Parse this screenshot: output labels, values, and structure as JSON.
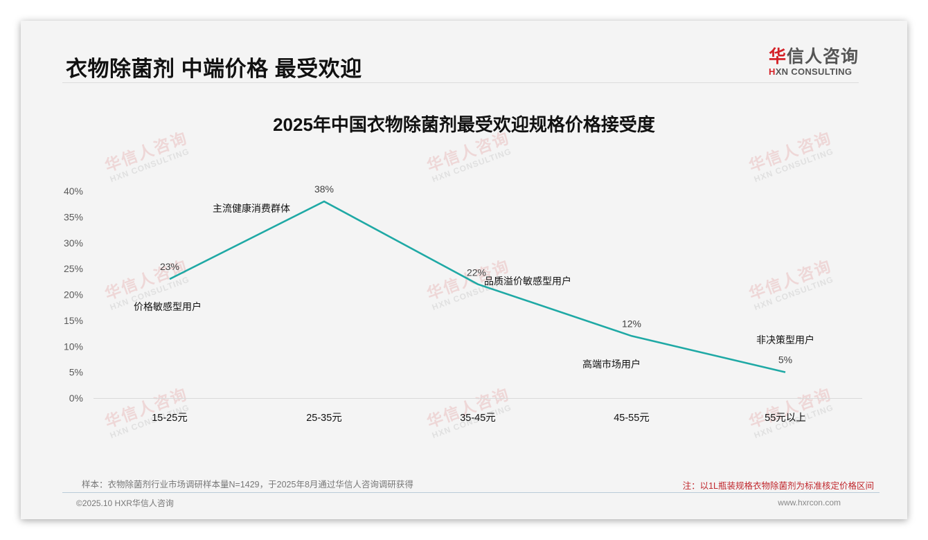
{
  "header": {
    "title": "衣物除菌剂 中端价格 最受欢迎",
    "logo_cn_accent": "华",
    "logo_cn_rest": "信人咨询",
    "logo_en_accent": "H",
    "logo_en_rest": "XN CONSULTING"
  },
  "watermark": {
    "cn": "华信人咨询",
    "en": "HXN CONSULTING"
  },
  "colors": {
    "line": "#1fa9a5",
    "accent_red": "#d42127",
    "note_red": "#c0272d"
  },
  "chart_data": {
    "type": "line",
    "title": "2025年中国衣物除菌剂最受欢迎规格价格接受度",
    "categories": [
      "15-25元",
      "25-35元",
      "35-45元",
      "45-55元",
      "55元以上"
    ],
    "series": [
      {
        "name": "价格接受度",
        "values": [
          23,
          38,
          22,
          12,
          5
        ]
      }
    ],
    "value_labels": [
      "23%",
      "38%",
      "22%",
      "12%",
      "5%"
    ],
    "annotations": [
      "价格敏感型用户",
      "主流健康消费群体",
      "品质溢价敏感型用户",
      "高端市场用户",
      "非决策型用户"
    ],
    "ylim": [
      0,
      40
    ],
    "yticks": [
      "0%",
      "5%",
      "10%",
      "15%",
      "20%",
      "25%",
      "30%",
      "35%",
      "40%"
    ],
    "xlabel": "",
    "ylabel": "",
    "grid": false,
    "legend": "none"
  },
  "footer": {
    "sample": "样本：衣物除菌剂行业市场调研样本量N=1429，于2025年8月通过华信人咨询调研获得",
    "note": "注：以1L瓶装规格衣物除菌剂为标准核定价格区间",
    "copyright": "©2025.10 HXR华信人咨询",
    "website": "www.hxrcon.com"
  }
}
